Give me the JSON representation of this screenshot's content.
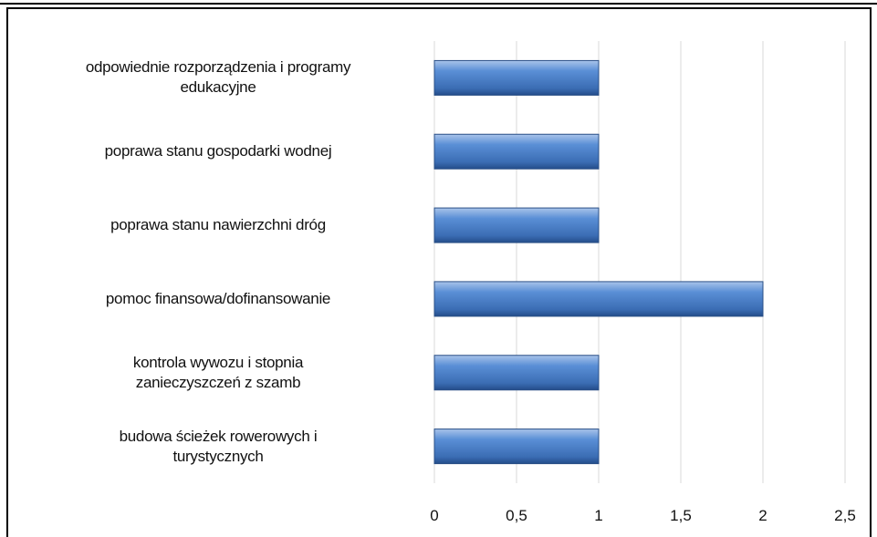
{
  "chart_data": {
    "type": "bar",
    "orientation": "horizontal",
    "categories": [
      "odpowiednie rozporządzenia i programy\nedukacyjne",
      "poprawa stanu gospodarki wodnej",
      "poprawa stanu nawierzchni dróg",
      "pomoc finansowa/dofinansowanie",
      "kontrola wywozu i stopnia\nzanieczyszczeń  z szamb",
      "budowa ścieżek rowerowych i\nturystycznych"
    ],
    "values": [
      1,
      1,
      1,
      2,
      1,
      1
    ],
    "color": "#4a7cc0",
    "xlim": [
      0,
      2.5
    ],
    "xticks": [
      0,
      {
        "value": 0.5,
        "label": "0,5"
      },
      1,
      {
        "value": 1.5,
        "label": "1,5"
      },
      2,
      {
        "value": 2.5,
        "label": "2,5"
      }
    ],
    "grid": true
  }
}
